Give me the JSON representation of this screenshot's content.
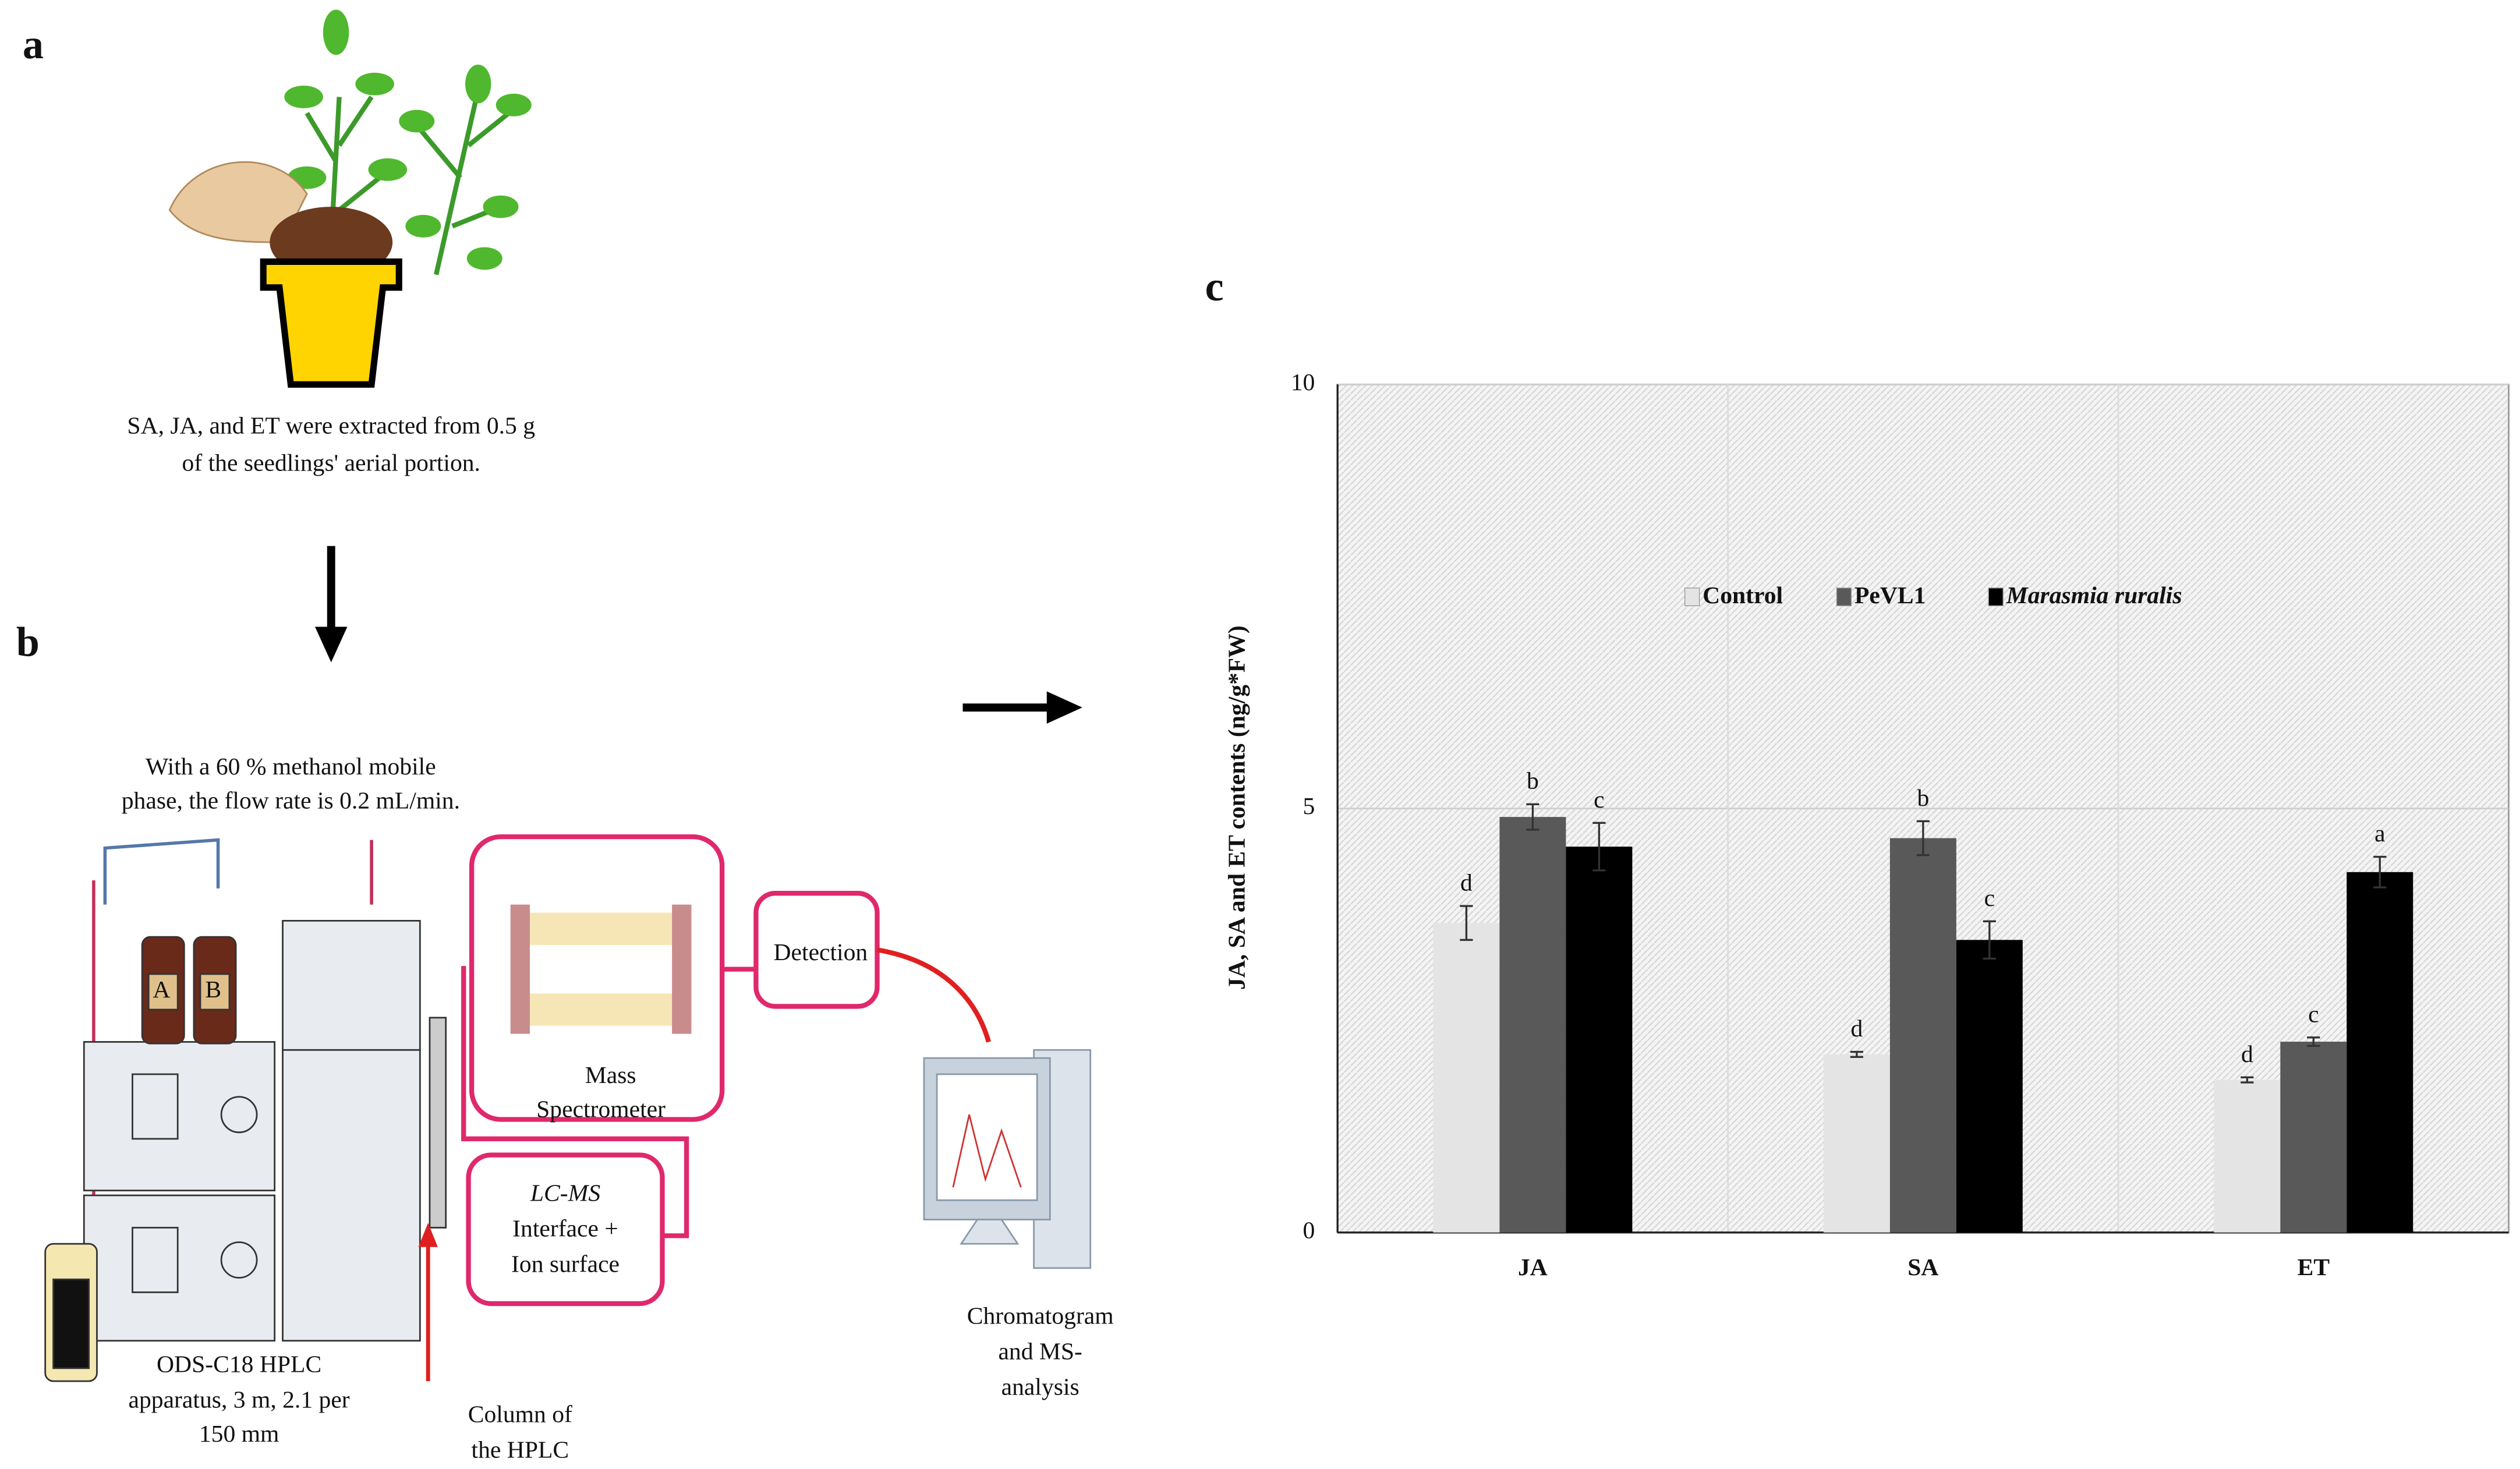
{
  "panels": {
    "a": "a",
    "b": "b",
    "c": "c"
  },
  "extraction": [
    "SA, JA, and ET were extracted from 0.5 g",
    "of the seedlings' aerial portion."
  ],
  "mobile_phase": [
    "With a 60 % methanol mobile",
    "phase, the flow rate is 0.2 mL/min."
  ],
  "bottles": [
    "A",
    "B"
  ],
  "mass_spectrometer": [
    "Mass",
    "Spectrometer"
  ],
  "detection": "Detection",
  "interface": [
    "LC-MS",
    "Interface +",
    "Ion surface"
  ],
  "hplc": [
    "ODS-C18 HPLC",
    "apparatus, 3 m, 2.1 per",
    "150 mm"
  ],
  "column": [
    "Column of",
    "the HPLC"
  ],
  "chromatogram": [
    "Chromatogram",
    "and MS-",
    "analysis"
  ],
  "chart_data": {
    "type": "bar",
    "ylabel": "JA, SA and ET contents (ng/g*FW)",
    "categories": [
      "JA",
      "SA",
      "ET"
    ],
    "series": [
      {
        "name": "Control",
        "color": "#e4e4e4",
        "values": [
          3.65,
          2.1,
          1.8
        ],
        "errors": [
          0.2,
          0.03,
          0.03
        ],
        "letters": [
          "d",
          "d",
          "d"
        ]
      },
      {
        "name": "PeVL1",
        "color": "#595959",
        "values": [
          4.9,
          4.65,
          2.25
        ],
        "errors": [
          0.15,
          0.2,
          0.05
        ],
        "letters": [
          "b",
          "b",
          "c"
        ]
      },
      {
        "name": "Marasmia ruralis",
        "color": "#000000",
        "values": [
          4.55,
          3.45,
          4.25
        ],
        "errors": [
          0.28,
          0.22,
          0.18
        ],
        "letters": [
          "c",
          "c",
          "a"
        ]
      }
    ],
    "ylim": [
      0,
      10
    ],
    "yticks": [
      0,
      5,
      10
    ],
    "grid": true
  }
}
